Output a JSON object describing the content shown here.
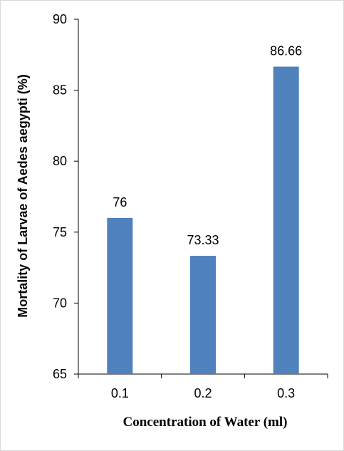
{
  "chart_data": {
    "type": "bar",
    "categories": [
      "0.1",
      "0.2",
      "0.3"
    ],
    "values": [
      76,
      73.33,
      86.66
    ],
    "data_labels": [
      "76",
      "73.33",
      "86.66"
    ],
    "xlabel": "Concentration  of Water (ml)",
    "ylabel": "Mortality of Larvae of Aedes aegypti (%)",
    "ylim": [
      65,
      90
    ],
    "yticks": [
      "65",
      "70",
      "75",
      "80",
      "85",
      "90"
    ],
    "bar_color": "#4f81bd",
    "grid": false,
    "legend": "none"
  }
}
